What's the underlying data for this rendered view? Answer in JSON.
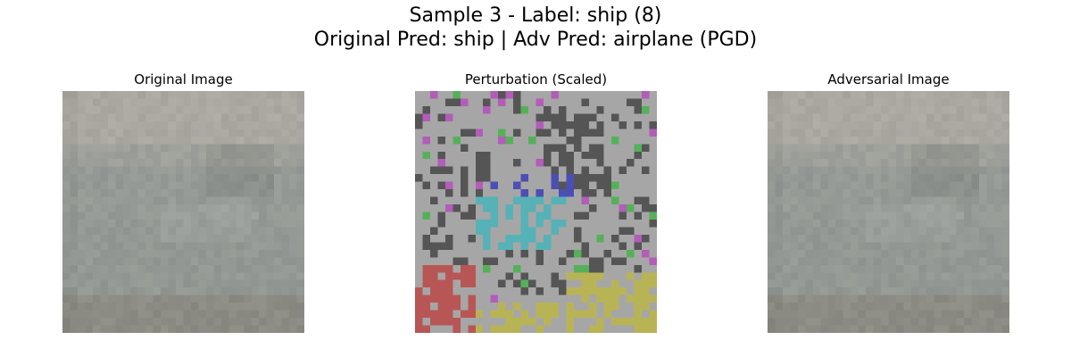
{
  "figure": {
    "title_line1": "Sample 3 - Label: ship (8)",
    "title_line2": "Original Pred: ship | Adv Pred: airplane (PGD)"
  },
  "panels": [
    {
      "title": "Original Image"
    },
    {
      "title": "Perturbation (Scaled)"
    },
    {
      "title": "Adversarial Image"
    }
  ],
  "palette": {
    "background": "#ffffff",
    "original_base": "#9c9d96",
    "perturb_gray": "#a6a6a6",
    "perturb_dark": "#555555",
    "perturb_blue": "#4b4fb4",
    "perturb_cyan": "#56b2b6",
    "perturb_magenta": "#b35cb8",
    "perturb_red": "#b85656",
    "perturb_yellow": "#b8b456",
    "perturb_green": "#56b05a"
  }
}
